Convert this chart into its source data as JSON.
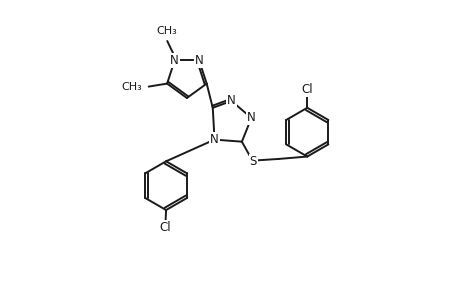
{
  "bg_color": "#ffffff",
  "line_color": "#1a1a1a",
  "line_width": 1.4,
  "font_size": 8.5,
  "fig_width": 4.6,
  "fig_height": 3.0,
  "dpi": 100,
  "xlim": [
    0,
    10
  ],
  "ylim": [
    0,
    10
  ]
}
